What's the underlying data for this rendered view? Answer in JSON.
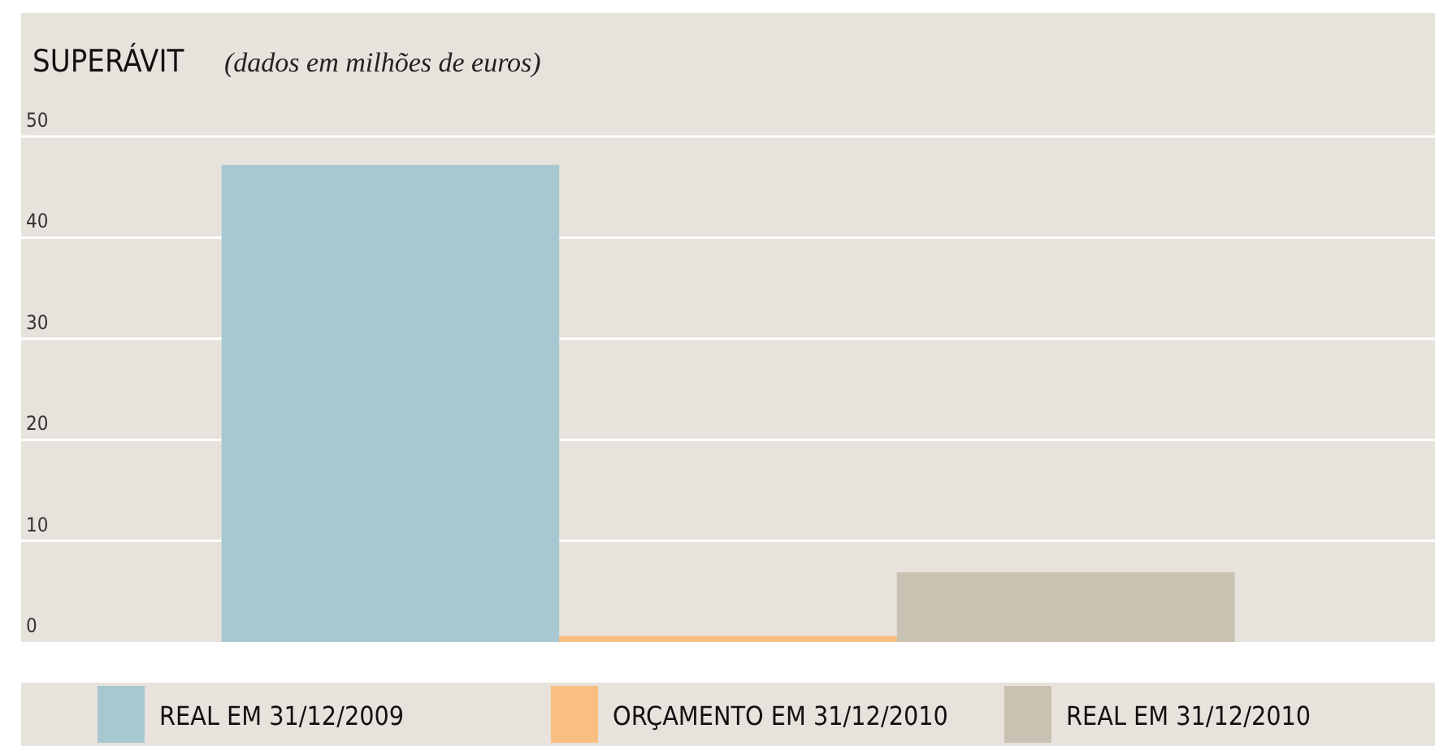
{
  "chart_data": {
    "type": "bar",
    "title": "SUPERÁVIT",
    "subtitle": "(dados em milhões de euros)",
    "categories": [
      null
    ],
    "series": [
      {
        "name": "REAL EM 31/12/2009",
        "color": "#a7c8d1",
        "values": [
          47.2
        ]
      },
      {
        "name": "ORÇAMENTO EM 31/12/2010",
        "color": "#f8bf80",
        "values": [
          0.6
        ]
      },
      {
        "name": "REAL EM 31/12/2010",
        "color": "#c9c2b2",
        "values": [
          6.9
        ]
      }
    ],
    "ylim": [
      0,
      50
    ],
    "yticks": [
      0,
      10,
      20,
      30,
      40,
      50
    ],
    "grid": "y",
    "legend": "bottom"
  }
}
